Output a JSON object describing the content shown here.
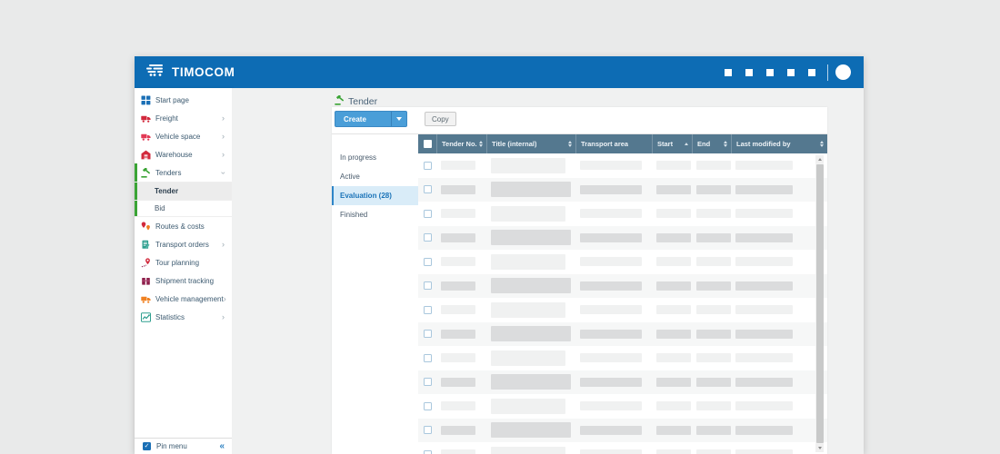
{
  "app": {
    "logo_text": "TIMOCOM"
  },
  "header": {
    "square_count": 5
  },
  "sidebar": {
    "items": [
      {
        "label": "Start page",
        "icon": "grid"
      },
      {
        "label": "Freight",
        "icon": "truck-red",
        "chevron": "right"
      },
      {
        "label": "Vehicle space",
        "icon": "truck-crimson",
        "chevron": "right"
      },
      {
        "label": "Warehouse",
        "icon": "warehouse",
        "chevron": "right"
      },
      {
        "label": "Tenders",
        "icon": "gavel",
        "chevron": "down",
        "group": true
      },
      {
        "label": "Tender",
        "sub": true,
        "selected": true,
        "group": true
      },
      {
        "label": "Bid",
        "sub": true,
        "last_sub": true,
        "group": true
      },
      {
        "label": "Routes & costs",
        "icon": "pins"
      },
      {
        "label": "Transport orders",
        "icon": "orders",
        "chevron": "right"
      },
      {
        "label": "Tour planning",
        "icon": "tour"
      },
      {
        "label": "Shipment tracking",
        "icon": "package"
      },
      {
        "label": "Vehicle management",
        "icon": "truck-orange",
        "chevron": "right"
      },
      {
        "label": "Statistics",
        "icon": "chart",
        "chevron": "right"
      }
    ],
    "pin_label": "Pin menu"
  },
  "page": {
    "title": "Tender"
  },
  "toolbar": {
    "create_label": "Create",
    "copy_label": "Copy"
  },
  "filters": {
    "items": [
      {
        "label": "In progress"
      },
      {
        "label": "Active"
      },
      {
        "label": "Evaluation (28)",
        "selected": true
      },
      {
        "label": "Finished"
      }
    ]
  },
  "table": {
    "columns": [
      {
        "label": "Tender No.",
        "sort": "both"
      },
      {
        "label": "Title (internal)",
        "sort": "both"
      },
      {
        "label": "Transport area",
        "sort": "none"
      },
      {
        "label": "Start",
        "sort": "asc"
      },
      {
        "label": "End",
        "sort": "both"
      },
      {
        "label": "Last modified by",
        "sort": "both"
      }
    ],
    "placeholder_row_count": 13
  },
  "colors": {
    "header_blue": "#0d6cb4",
    "table_header": "#54788f",
    "accent_blue": "#2e85c8",
    "accent_blue_text": "#1a73b8",
    "selected_filter_bg": "#d9ecf8",
    "create_button_blue": "#4a9ed8",
    "tenders_green": "#3aa435"
  }
}
